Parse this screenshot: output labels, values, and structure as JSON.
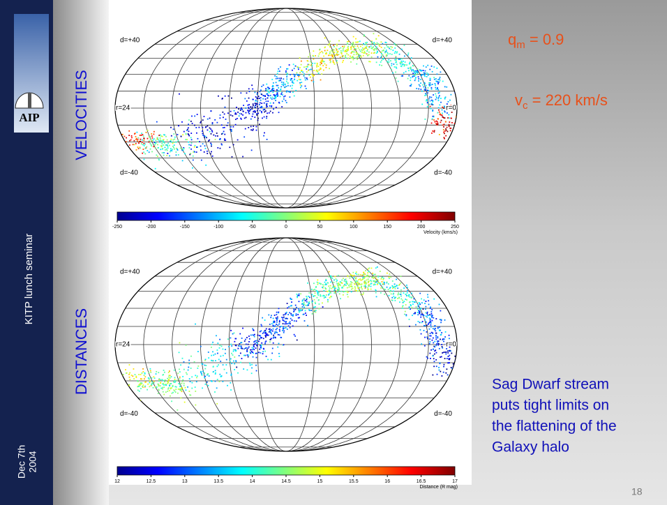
{
  "sidebar": {
    "logo": "AIP",
    "event": "KITP lunch seminar",
    "date": [
      "Dec 7th",
      "2004"
    ]
  },
  "panels": [
    {
      "label": "VELOCITIES",
      "map_labels": [
        "d=+40",
        "d=+40",
        "r=24",
        "r=0",
        "d=-40",
        "d=-40"
      ],
      "colorbar": {
        "ticks": [
          -250,
          -200,
          -150,
          -100,
          -50,
          0,
          50,
          100,
          150,
          200,
          250
        ],
        "title": "Velocity (kms/s)"
      }
    },
    {
      "label": "DISTANCES",
      "map_labels": [
        "d=+40",
        "d=+40",
        "r=24",
        "r=0",
        "d=-40",
        "d=-40"
      ],
      "colorbar": {
        "ticks": [
          12,
          12.5,
          13,
          13.5,
          14,
          14.5,
          15,
          15.5,
          16,
          16.5,
          17
        ],
        "title": "Distance (R mag)"
      }
    }
  ],
  "annotations": [
    {
      "base": "q",
      "sub": "m",
      "rest": " = 0.9"
    },
    {
      "base": "v",
      "sub": "c",
      "rest": " = 220 km/s"
    }
  ],
  "conclusion": [
    "Sag Dwarf stream",
    "puts tight limits on",
    "the flattening of the",
    "Galaxy halo"
  ],
  "page_number": 18
}
